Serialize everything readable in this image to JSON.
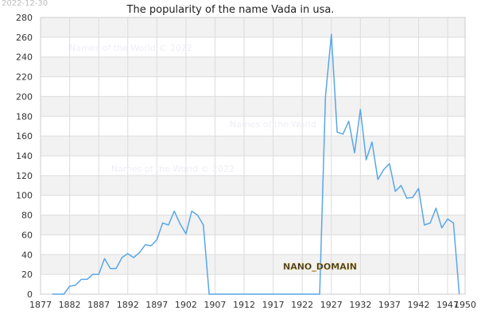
{
  "header": {
    "date": "2022-12-30",
    "title": "The popularity of the name Vada in usa."
  },
  "watermarks": [
    "Names of the World © 2022",
    "Names of the World",
    "Names of the World © 2022"
  ],
  "logo_text": "NANO_DOMAIN",
  "colors": {
    "line": "#5aa6e6",
    "band": "#f2f2f2",
    "grid": "#dcdcdc"
  },
  "chart_data": {
    "type": "line",
    "title": "The popularity of the name Vada in usa.",
    "xlabel": "",
    "ylabel": "",
    "xlim": [
      1877,
      1950
    ],
    "ylim": [
      0,
      280
    ],
    "x_ticks": [
      1877,
      1882,
      1887,
      1892,
      1897,
      1902,
      1907,
      1912,
      1917,
      1922,
      1927,
      1932,
      1937,
      1942,
      1947,
      1950
    ],
    "y_ticks": [
      0,
      20,
      40,
      60,
      80,
      100,
      120,
      140,
      160,
      180,
      200,
      220,
      240,
      260,
      280
    ],
    "grid": true,
    "series": [
      {
        "x": [
          1879,
          1880,
          1881,
          1882,
          1883,
          1884,
          1885,
          1886,
          1887,
          1888,
          1889,
          1890,
          1891,
          1892,
          1893,
          1894,
          1895,
          1896,
          1897,
          1898,
          1899,
          1900,
          1901,
          1902,
          1903,
          1904,
          1905,
          1906,
          1907,
          1910,
          1915,
          1920,
          1925,
          1926,
          1927,
          1928,
          1929,
          1930,
          1931,
          1932,
          1933,
          1934,
          1935,
          1936,
          1937,
          1938,
          1939,
          1940,
          1941,
          1942,
          1943,
          1944,
          1945,
          1946,
          1947,
          1948,
          1949
        ],
        "values": [
          0,
          0,
          0,
          8,
          9,
          15,
          15,
          20,
          20,
          36,
          26,
          26,
          37,
          41,
          37,
          42,
          50,
          49,
          55,
          72,
          70,
          84,
          71,
          61,
          84,
          80,
          70,
          0,
          0,
          0,
          0,
          0,
          0,
          200,
          263,
          164,
          162,
          175,
          143,
          187,
          136,
          154,
          116,
          126,
          132,
          104,
          110,
          97,
          98,
          107,
          70,
          72,
          87,
          67,
          76,
          72,
          0
        ]
      }
    ]
  }
}
